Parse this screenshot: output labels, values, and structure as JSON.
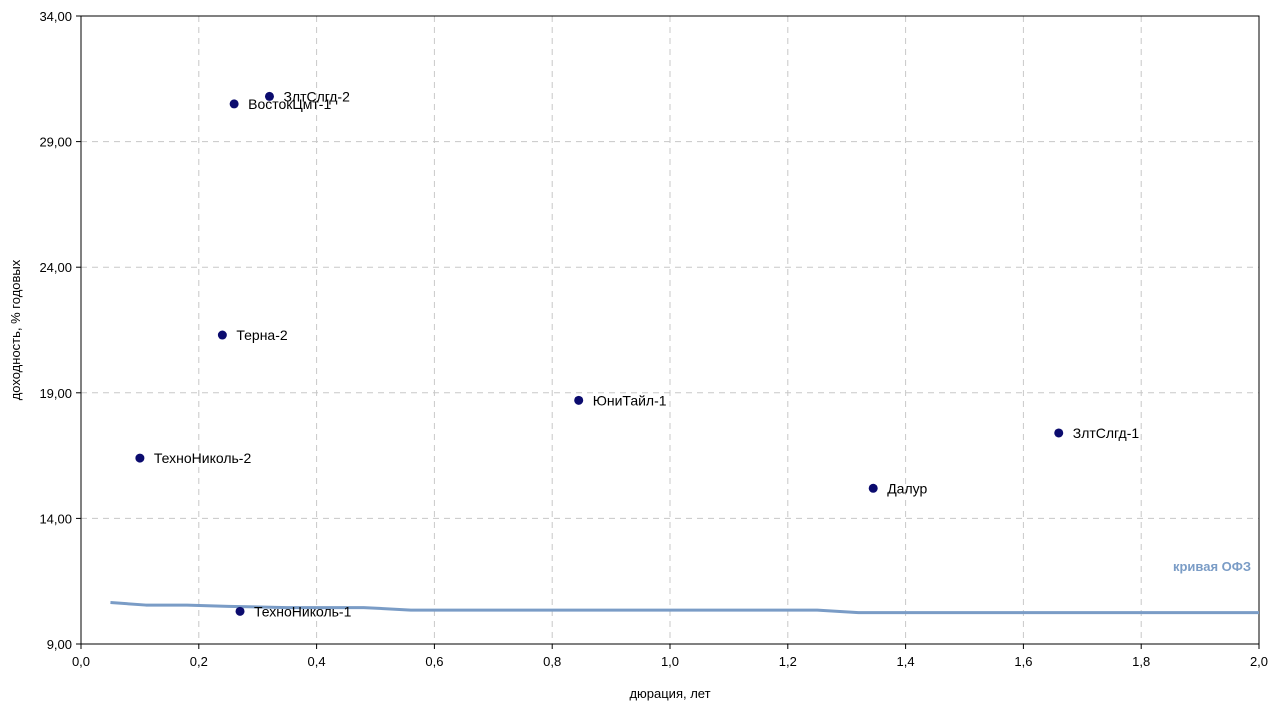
{
  "chart_data": {
    "type": "scatter",
    "xlabel": "дюрация, лет",
    "ylabel": "доходность, % годовых",
    "xlim": [
      0,
      2.0
    ],
    "ylim": [
      9,
      34
    ],
    "x_ticks": [
      "0,0",
      "0,2",
      "0,4",
      "0,6",
      "0,8",
      "1,0",
      "1,2",
      "1,4",
      "1,6",
      "1,8",
      "2,0"
    ],
    "x_tick_values": [
      0,
      0.2,
      0.4,
      0.6,
      0.8,
      1.0,
      1.2,
      1.4,
      1.6,
      1.8,
      2.0
    ],
    "y_ticks": [
      "9,00",
      "14,00",
      "19,00",
      "24,00",
      "29,00",
      "34,00"
    ],
    "y_tick_values": [
      9,
      14,
      19,
      24,
      29,
      34
    ],
    "grid": true,
    "points": [
      {
        "label": "ЗлтСлгд-2",
        "x": 0.32,
        "y": 30.8
      },
      {
        "label": "ВостокЦмт-1",
        "x": 0.26,
        "y": 30.5
      },
      {
        "label": "Терна-2",
        "x": 0.24,
        "y": 21.3
      },
      {
        "label": "ТехноНиколь-2",
        "x": 0.1,
        "y": 16.4
      },
      {
        "label": "ЮниТайл-1",
        "x": 0.845,
        "y": 18.7
      },
      {
        "label": "ЗлтСлгд-1",
        "x": 1.66,
        "y": 17.4
      },
      {
        "label": "Далур",
        "x": 1.345,
        "y": 15.2
      },
      {
        "label": "ТехноНиколь-1",
        "x": 0.27,
        "y": 10.3
      }
    ],
    "curve": {
      "name": "кривая ОФЗ",
      "color": "#7a9cc6",
      "x": [
        0.05,
        0.11,
        0.18,
        0.25,
        0.35,
        0.48,
        0.56,
        0.8,
        1.0,
        1.25,
        1.32,
        1.6,
        1.9,
        2.0
      ],
      "y": [
        10.65,
        10.55,
        10.55,
        10.5,
        10.45,
        10.45,
        10.35,
        10.35,
        10.35,
        10.35,
        10.25,
        10.25,
        10.25,
        10.25
      ]
    },
    "point_color": "#0b0b6e"
  }
}
